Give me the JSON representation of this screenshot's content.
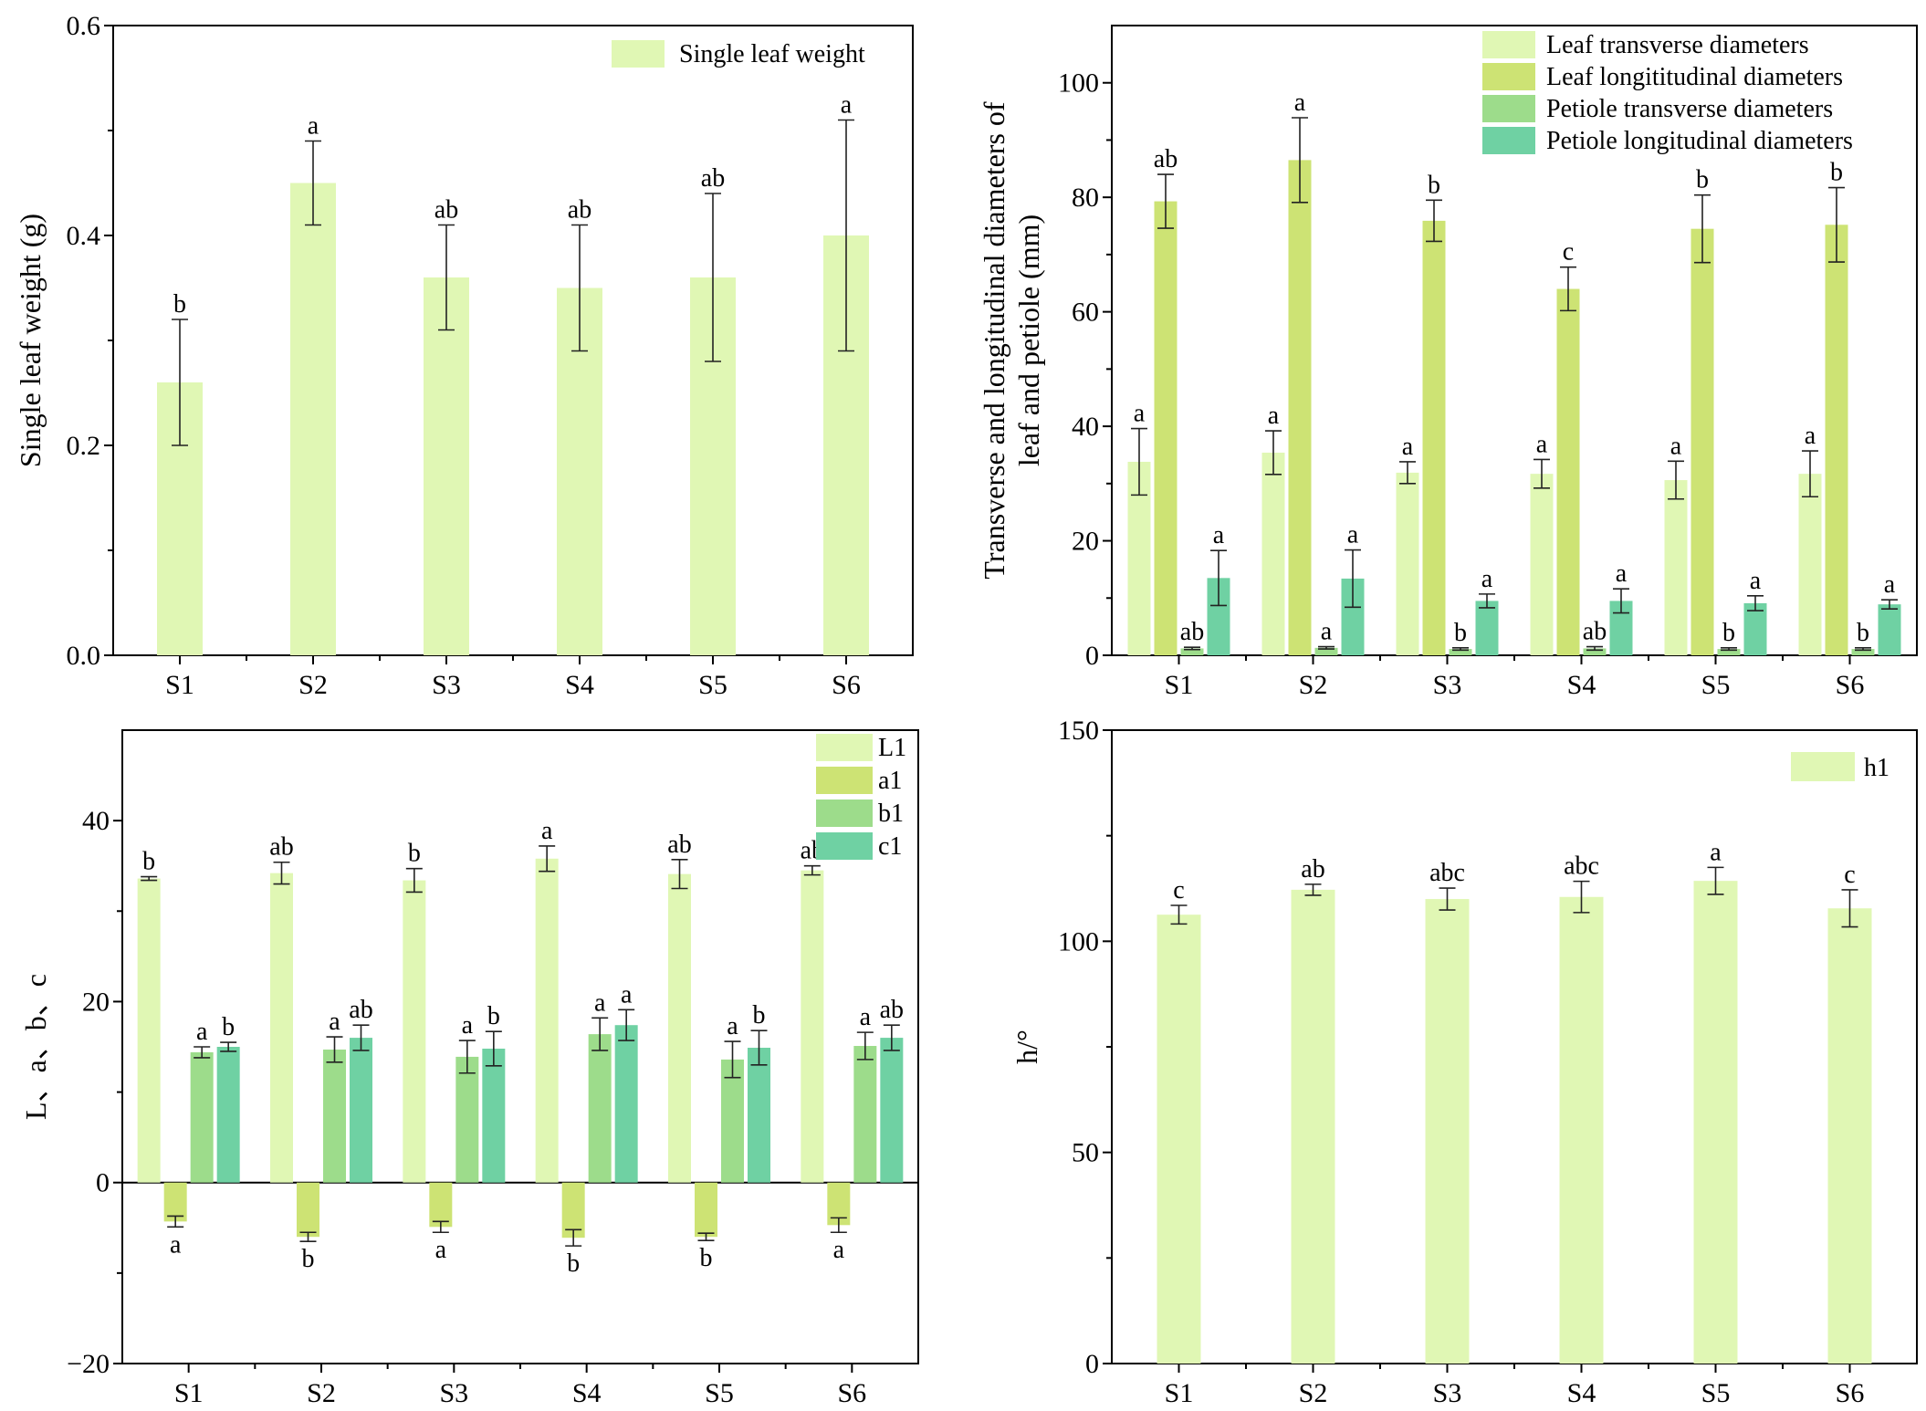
{
  "chart_data": [
    {
      "id": "single-leaf-weight",
      "type": "bar",
      "title": "",
      "xlabel": "",
      "ylabel": "Single leaf weight (g)",
      "ylim": [
        0,
        0.6
      ],
      "yticks": [
        "0.0",
        "0.2",
        "0.4",
        "0.6"
      ],
      "categories": [
        "S1",
        "S2",
        "S3",
        "S4",
        "S5",
        "S6"
      ],
      "legend_position": "top-right",
      "series": [
        {
          "name": "Single leaf weight",
          "color": "#e0f7b4",
          "values": [
            0.26,
            0.45,
            0.36,
            0.35,
            0.36,
            0.4
          ],
          "errors": [
            0.06,
            0.04,
            0.05,
            0.06,
            0.08,
            0.11
          ],
          "labels": [
            "b",
            "a",
            "ab",
            "ab",
            "ab",
            "a"
          ]
        }
      ]
    },
    {
      "id": "leaf-petiole-diameters",
      "type": "bar",
      "title": "",
      "xlabel": "",
      "ylabel": [
        "Transverse and longitudinal diameters of",
        "leaf and petiole (mm)"
      ],
      "ylim": [
        0,
        110
      ],
      "yticks": [
        "0",
        "20",
        "40",
        "60",
        "80",
        "100"
      ],
      "categories": [
        "S1",
        "S2",
        "S3",
        "S4",
        "S5",
        "S6"
      ],
      "legend_position": "top-right",
      "series": [
        {
          "name": "Leaf  transverse diameters",
          "color": "#e0f7b4",
          "values": [
            33.8,
            35.4,
            31.9,
            31.7,
            30.6,
            31.7
          ],
          "errors": [
            5.8,
            3.8,
            1.9,
            2.5,
            3.3,
            4.0
          ],
          "labels": [
            "a",
            "a",
            "a",
            "a",
            "a",
            "a"
          ]
        },
        {
          "name": "Leaf  longititudinal diameters",
          "color": "#cde374",
          "values": [
            79.3,
            86.5,
            75.9,
            64.0,
            74.5,
            75.2
          ],
          "errors": [
            4.7,
            7.4,
            3.6,
            3.8,
            5.9,
            6.5
          ],
          "labels": [
            "ab",
            "a",
            "b",
            "c",
            "b",
            "b"
          ]
        },
        {
          "name": "Petiole transverse diameters",
          "color": "#9ddc8b",
          "values": [
            1.2,
            1.3,
            1.1,
            1.2,
            1.1,
            1.1
          ],
          "errors": [
            0.2,
            0.2,
            0.2,
            0.3,
            0.2,
            0.2
          ],
          "labels": [
            "ab",
            "a",
            "b",
            "ab",
            "b",
            "b"
          ]
        },
        {
          "name": "Petiole  longitudinal diameters",
          "color": "#6fd1a3",
          "values": [
            13.5,
            13.4,
            9.5,
            9.5,
            9.1,
            8.9
          ],
          "errors": [
            4.8,
            5.0,
            1.2,
            2.1,
            1.3,
            0.8
          ],
          "labels": [
            "a",
            "a",
            "a",
            "a",
            "a",
            "a"
          ]
        }
      ]
    },
    {
      "id": "color-lab",
      "type": "bar",
      "title": "",
      "xlabel": "",
      "ylabel": "L、a、b、c",
      "ylim": [
        -20,
        50
      ],
      "yticks": [
        "−20",
        "0",
        "20",
        "40"
      ],
      "categories": [
        "S1",
        "S2",
        "S3",
        "S4",
        "S5",
        "S6"
      ],
      "legend_position": "top-right",
      "series": [
        {
          "name": "L1",
          "color": "#e0f7b4",
          "values": [
            33.6,
            34.2,
            33.4,
            35.8,
            34.1,
            34.5
          ],
          "errors": [
            0.2,
            1.2,
            1.3,
            1.4,
            1.6,
            0.5
          ],
          "labels": [
            "b",
            "ab",
            "b",
            "a",
            "ab",
            "ab"
          ]
        },
        {
          "name": "a1",
          "color": "#cde374",
          "values": [
            -4.3,
            -6.0,
            -4.9,
            -6.1,
            -6.0,
            -4.7
          ],
          "errors": [
            0.6,
            0.5,
            0.6,
            0.9,
            0.4,
            0.8
          ],
          "labels": [
            "a",
            "b",
            "a",
            "b",
            "b",
            "a"
          ]
        },
        {
          "name": "b1",
          "color": "#9ddc8b",
          "values": [
            14.4,
            14.7,
            13.9,
            16.4,
            13.6,
            15.1
          ],
          "errors": [
            0.6,
            1.4,
            1.8,
            1.8,
            2.0,
            1.5
          ],
          "labels": [
            "a",
            "a",
            "a",
            "a",
            "a",
            "a"
          ]
        },
        {
          "name": "c1",
          "color": "#6fd1a3",
          "values": [
            15.0,
            16.0,
            14.8,
            17.4,
            14.9,
            16.0
          ],
          "errors": [
            0.5,
            1.4,
            1.9,
            1.7,
            1.9,
            1.4
          ],
          "labels": [
            "b",
            "ab",
            "b",
            "a",
            "b",
            "ab"
          ]
        }
      ]
    },
    {
      "id": "hue-angle",
      "type": "bar",
      "title": "",
      "xlabel": "",
      "ylabel": "h/°",
      "ylim": [
        0,
        150
      ],
      "yticks": [
        "0",
        "50",
        "100",
        "150"
      ],
      "categories": [
        "S1",
        "S2",
        "S3",
        "S4",
        "S5",
        "S6"
      ],
      "legend_position": "top-right",
      "series": [
        {
          "name": "h1",
          "color": "#e0f7b4",
          "values": [
            106.3,
            112.2,
            110.0,
            110.5,
            114.3,
            107.8
          ],
          "errors": [
            2.2,
            1.3,
            2.6,
            3.7,
            3.2,
            4.4
          ],
          "labels": [
            "c",
            "ab",
            "abc",
            "abc",
            "a",
            "c"
          ]
        }
      ]
    }
  ]
}
